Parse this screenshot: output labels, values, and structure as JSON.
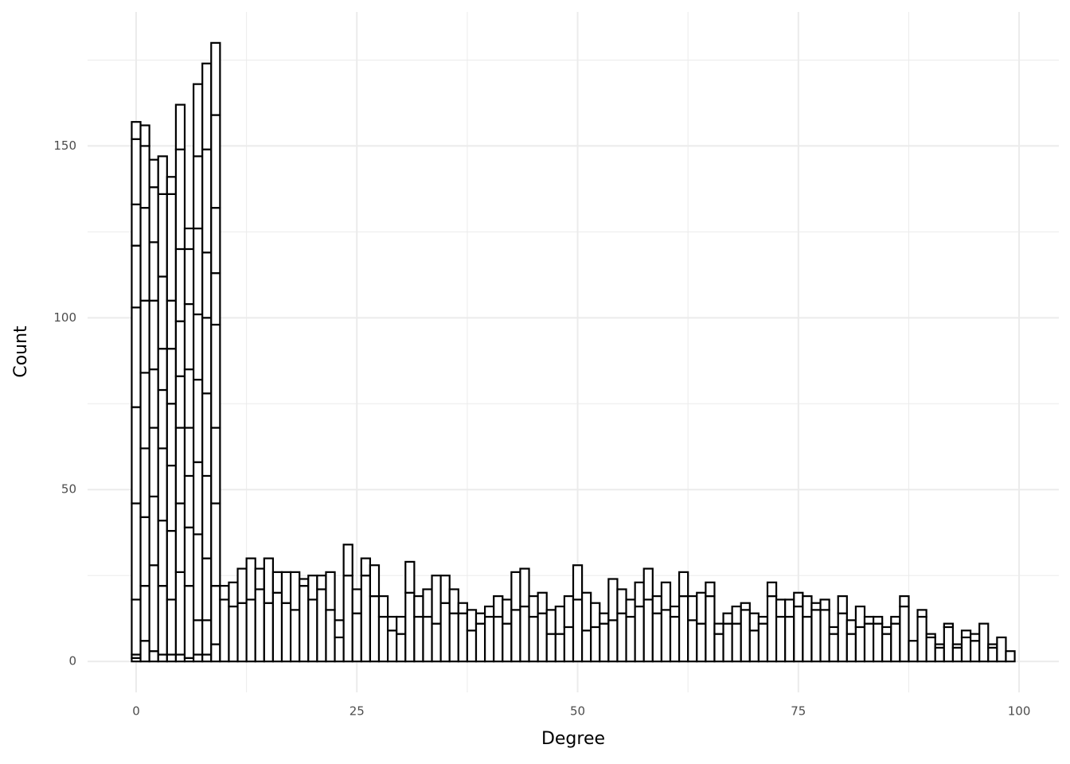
{
  "chart_data": {
    "type": "histogram",
    "x_label": "Degree",
    "y_label": "Count",
    "bins": [
      -0.5,
      0.5,
      1.5,
      2.5,
      3.5,
      4.5,
      5.5,
      6.5,
      7.5,
      8.5,
      9.5,
      10.5,
      11.5,
      12.5,
      13.5,
      14.5,
      15.5,
      16.5,
      17.5,
      18.5,
      19.5,
      20.5,
      21.5,
      22.5,
      23.5,
      24.5,
      25.5,
      26.5,
      27.5,
      28.5,
      29.5,
      30.5,
      31.5,
      32.5,
      33.5,
      34.5,
      35.5,
      36.5,
      37.5,
      38.5,
      39.5,
      40.5,
      41.5,
      42.5,
      43.5,
      44.5,
      45.5,
      46.5,
      47.5,
      48.5,
      49.5,
      50.5,
      51.5,
      52.5,
      53.5,
      54.5,
      55.5,
      56.5,
      57.5,
      58.5,
      59.5,
      60.5,
      61.5,
      62.5,
      63.5,
      64.5,
      65.5,
      66.5,
      67.5,
      68.5,
      69.5,
      70.5,
      71.5,
      72.5,
      73.5,
      74.5,
      75.5,
      76.5,
      77.5,
      78.5,
      79.5,
      80.5,
      81.5,
      82.5,
      83.5,
      84.5,
      85.5,
      86.5,
      87.5,
      88.5,
      89.5,
      90.5,
      91.5,
      92.5,
      93.5,
      94.5,
      95.5,
      96.5,
      97.5,
      98.5,
      99.5
    ],
    "stacked": true,
    "color": "#ffffff",
    "edgecolor": "#000000",
    "series": [
      {
        "values": [
          1,
          0,
          0,
          0,
          0,
          0,
          0,
          0,
          0,
          0,
          18,
          16,
          17,
          18,
          21,
          17,
          20,
          17,
          15,
          22,
          18,
          21,
          15,
          7,
          25,
          14,
          25,
          19,
          13,
          9,
          8,
          20,
          13,
          13,
          11,
          17,
          14,
          14,
          9,
          11,
          13,
          13,
          11,
          15,
          16,
          13,
          14,
          8,
          8,
          10,
          18,
          9,
          10,
          11,
          12,
          14,
          13,
          16,
          18,
          14,
          15,
          13,
          19,
          12,
          11,
          19,
          8,
          11,
          11,
          15,
          9,
          11,
          19,
          13,
          13,
          16,
          13,
          15,
          15,
          8,
          14,
          8,
          10,
          11,
          11,
          8,
          11,
          16,
          6,
          13,
          7,
          4,
          10,
          4,
          7,
          6,
          11,
          4,
          7,
          3
        ]
      },
      {
        "values": [
          1,
          6,
          3,
          2,
          2,
          2,
          1,
          2,
          2,
          5,
          4,
          7,
          10,
          12,
          6,
          13,
          6,
          9,
          11,
          2,
          7,
          4,
          11,
          5,
          9,
          7,
          5,
          9,
          6,
          4,
          5,
          9,
          6,
          8,
          14,
          8,
          7,
          3,
          6,
          3,
          3,
          6,
          7,
          11,
          11,
          6,
          6,
          7,
          8,
          9,
          10,
          11,
          7,
          3,
          12,
          7,
          5,
          7,
          9,
          5,
          8,
          3,
          7,
          7,
          9,
          4,
          3,
          3,
          5,
          2,
          5,
          2,
          4,
          5,
          5,
          4,
          6,
          2,
          3,
          2,
          5,
          4,
          6,
          2,
          2,
          2,
          2,
          3,
          0,
          2,
          1,
          1,
          1,
          1,
          2,
          2,
          0,
          1,
          0,
          0
        ]
      },
      {
        "values": [
          16,
          16,
          25,
          20,
          16,
          24,
          21,
          10,
          10,
          17,
          0,
          0,
          0,
          0,
          0,
          0,
          0,
          0,
          0,
          0,
          0,
          0,
          0,
          0,
          0,
          0,
          0,
          0,
          0,
          0,
          0,
          0,
          0,
          0,
          0,
          0,
          0,
          0,
          0,
          0,
          0,
          0,
          0,
          0,
          0,
          0,
          0,
          0,
          0,
          0,
          0,
          0,
          0,
          0,
          0,
          0,
          0,
          0,
          0,
          0,
          0,
          0,
          0,
          0,
          0,
          0,
          0,
          0,
          0,
          0,
          0,
          0,
          0,
          0,
          0,
          0,
          0,
          0,
          0,
          0,
          0,
          0,
          0,
          0,
          0,
          0,
          0,
          0,
          0,
          0,
          0,
          0,
          0,
          0,
          0,
          0,
          0,
          0,
          0,
          0
        ]
      },
      {
        "values": [
          28,
          20,
          20,
          19,
          20,
          20,
          17,
          25,
          18,
          24,
          0,
          0,
          0,
          0,
          0,
          0,
          0,
          0,
          0,
          0,
          0,
          0,
          0,
          0,
          0,
          0,
          0,
          0,
          0,
          0,
          0,
          0,
          0,
          0,
          0,
          0,
          0,
          0,
          0,
          0,
          0,
          0,
          0,
          0,
          0,
          0,
          0,
          0,
          0,
          0,
          0,
          0,
          0,
          0,
          0,
          0,
          0,
          0,
          0,
          0,
          0,
          0,
          0,
          0,
          0,
          0,
          0,
          0,
          0,
          0,
          0,
          0,
          0,
          0,
          0,
          0,
          0,
          0,
          0,
          0,
          0,
          0,
          0,
          0,
          0,
          0,
          0,
          0,
          0,
          0,
          0,
          0,
          0,
          0,
          0,
          0,
          0,
          0,
          0,
          0
        ]
      },
      {
        "values": [
          28,
          20,
          20,
          21,
          19,
          22,
          15,
          21,
          24,
          22,
          0,
          0,
          0,
          0,
          0,
          0,
          0,
          0,
          0,
          0,
          0,
          0,
          0,
          0,
          0,
          0,
          0,
          0,
          0,
          0,
          0,
          0,
          0,
          0,
          0,
          0,
          0,
          0,
          0,
          0,
          0,
          0,
          0,
          0,
          0,
          0,
          0,
          0,
          0,
          0,
          0,
          0,
          0,
          0,
          0,
          0,
          0,
          0,
          0,
          0,
          0,
          0,
          0,
          0,
          0,
          0,
          0,
          0,
          0,
          0,
          0,
          0,
          0,
          0,
          0,
          0,
          0,
          0,
          0,
          0,
          0,
          0,
          0,
          0,
          0,
          0,
          0,
          0,
          0,
          0,
          0,
          0,
          0,
          0,
          0,
          0,
          0,
          0,
          0,
          0
        ]
      },
      {
        "values": [
          29,
          22,
          17,
          17,
          18,
          15,
          14,
          24,
          24,
          30,
          0,
          0,
          0,
          0,
          0,
          0,
          0,
          0,
          0,
          0,
          0,
          0,
          0,
          0,
          0,
          0,
          0,
          0,
          0,
          0,
          0,
          0,
          0,
          0,
          0,
          0,
          0,
          0,
          0,
          0,
          0,
          0,
          0,
          0,
          0,
          0,
          0,
          0,
          0,
          0,
          0,
          0,
          0,
          0,
          0,
          0,
          0,
          0,
          0,
          0,
          0,
          0,
          0,
          0,
          0,
          0,
          0,
          0,
          0,
          0,
          0,
          0,
          0,
          0,
          0,
          0,
          0,
          0,
          0,
          0,
          0,
          0,
          0,
          0,
          0,
          0,
          0,
          0,
          0,
          0,
          0,
          0,
          0,
          0,
          0,
          0,
          0,
          0,
          0,
          0
        ]
      },
      {
        "values": [
          18,
          21,
          20,
          12,
          16,
          16,
          17,
          19,
          22,
          15,
          0,
          0,
          0,
          0,
          0,
          0,
          0,
          0,
          0,
          0,
          0,
          0,
          0,
          0,
          0,
          0,
          0,
          0,
          0,
          0,
          0,
          0,
          0,
          0,
          0,
          0,
          0,
          0,
          0,
          0,
          0,
          0,
          0,
          0,
          0,
          0,
          0,
          0,
          0,
          0,
          0,
          0,
          0,
          0,
          0,
          0,
          0,
          0,
          0,
          0,
          0,
          0,
          0,
          0,
          0,
          0,
          0,
          0,
          0,
          0,
          0,
          0,
          0,
          0,
          0,
          0,
          0,
          0,
          0,
          0,
          0,
          0,
          0,
          0,
          0,
          0,
          0,
          0,
          0,
          0,
          0,
          0,
          0,
          0,
          0,
          0,
          0,
          0,
          0,
          0
        ]
      },
      {
        "values": [
          12,
          27,
          17,
          21,
          14,
          21,
          19,
          25,
          19,
          19,
          0,
          0,
          0,
          0,
          0,
          0,
          0,
          0,
          0,
          0,
          0,
          0,
          0,
          0,
          0,
          0,
          0,
          0,
          0,
          0,
          0,
          0,
          0,
          0,
          0,
          0,
          0,
          0,
          0,
          0,
          0,
          0,
          0,
          0,
          0,
          0,
          0,
          0,
          0,
          0,
          0,
          0,
          0,
          0,
          0,
          0,
          0,
          0,
          0,
          0,
          0,
          0,
          0,
          0,
          0,
          0,
          0,
          0,
          0,
          0,
          0,
          0,
          0,
          0,
          0,
          0,
          0,
          0,
          0,
          0,
          0,
          0,
          0,
          0,
          0,
          0,
          0,
          0,
          0,
          0,
          0,
          0,
          0,
          0,
          0,
          0,
          0,
          0,
          0,
          0
        ]
      },
      {
        "values": [
          19,
          18,
          16,
          24,
          31,
          29,
          16,
          21,
          30,
          27,
          0,
          0,
          0,
          0,
          0,
          0,
          0,
          0,
          0,
          0,
          0,
          0,
          0,
          0,
          0,
          0,
          0,
          0,
          0,
          0,
          0,
          0,
          0,
          0,
          0,
          0,
          0,
          0,
          0,
          0,
          0,
          0,
          0,
          0,
          0,
          0,
          0,
          0,
          0,
          0,
          0,
          0,
          0,
          0,
          0,
          0,
          0,
          0,
          0,
          0,
          0,
          0,
          0,
          0,
          0,
          0,
          0,
          0,
          0,
          0,
          0,
          0,
          0,
          0,
          0,
          0,
          0,
          0,
          0,
          0,
          0,
          0,
          0,
          0,
          0,
          0,
          0,
          0,
          0,
          0,
          0,
          0,
          0,
          0,
          0,
          0,
          0,
          0,
          0,
          0
        ]
      },
      {
        "values": [
          5,
          6,
          8,
          11,
          5,
          13,
          6,
          21,
          25,
          21,
          0,
          0,
          0,
          0,
          0,
          0,
          0,
          0,
          0,
          0,
          0,
          0,
          0,
          0,
          0,
          0,
          0,
          0,
          0,
          0,
          0,
          0,
          0,
          0,
          0,
          0,
          0,
          0,
          0,
          0,
          0,
          0,
          0,
          0,
          0,
          0,
          0,
          0,
          0,
          0,
          0,
          0,
          0,
          0,
          0,
          0,
          0,
          0,
          0,
          0,
          0,
          0,
          0,
          0,
          0,
          0,
          0,
          0,
          0,
          0,
          0,
          0,
          0,
          0,
          0,
          0,
          0,
          0,
          0,
          0,
          0,
          0,
          0,
          0,
          0,
          0,
          0,
          0,
          0,
          0,
          0,
          0,
          0,
          0,
          0,
          0,
          0,
          0,
          0,
          0
        ]
      }
    ],
    "xlim": [
      -5.5,
      104.5
    ],
    "ylim": [
      -9,
      189
    ],
    "xticks": [
      0,
      25,
      50,
      75,
      100
    ],
    "yticks": [
      0,
      50,
      100,
      150
    ],
    "x_minor_ticks": [
      12.5,
      37.5,
      62.5,
      87.5
    ],
    "y_minor_ticks": [
      25,
      75,
      125,
      175
    ],
    "grid": true
  }
}
